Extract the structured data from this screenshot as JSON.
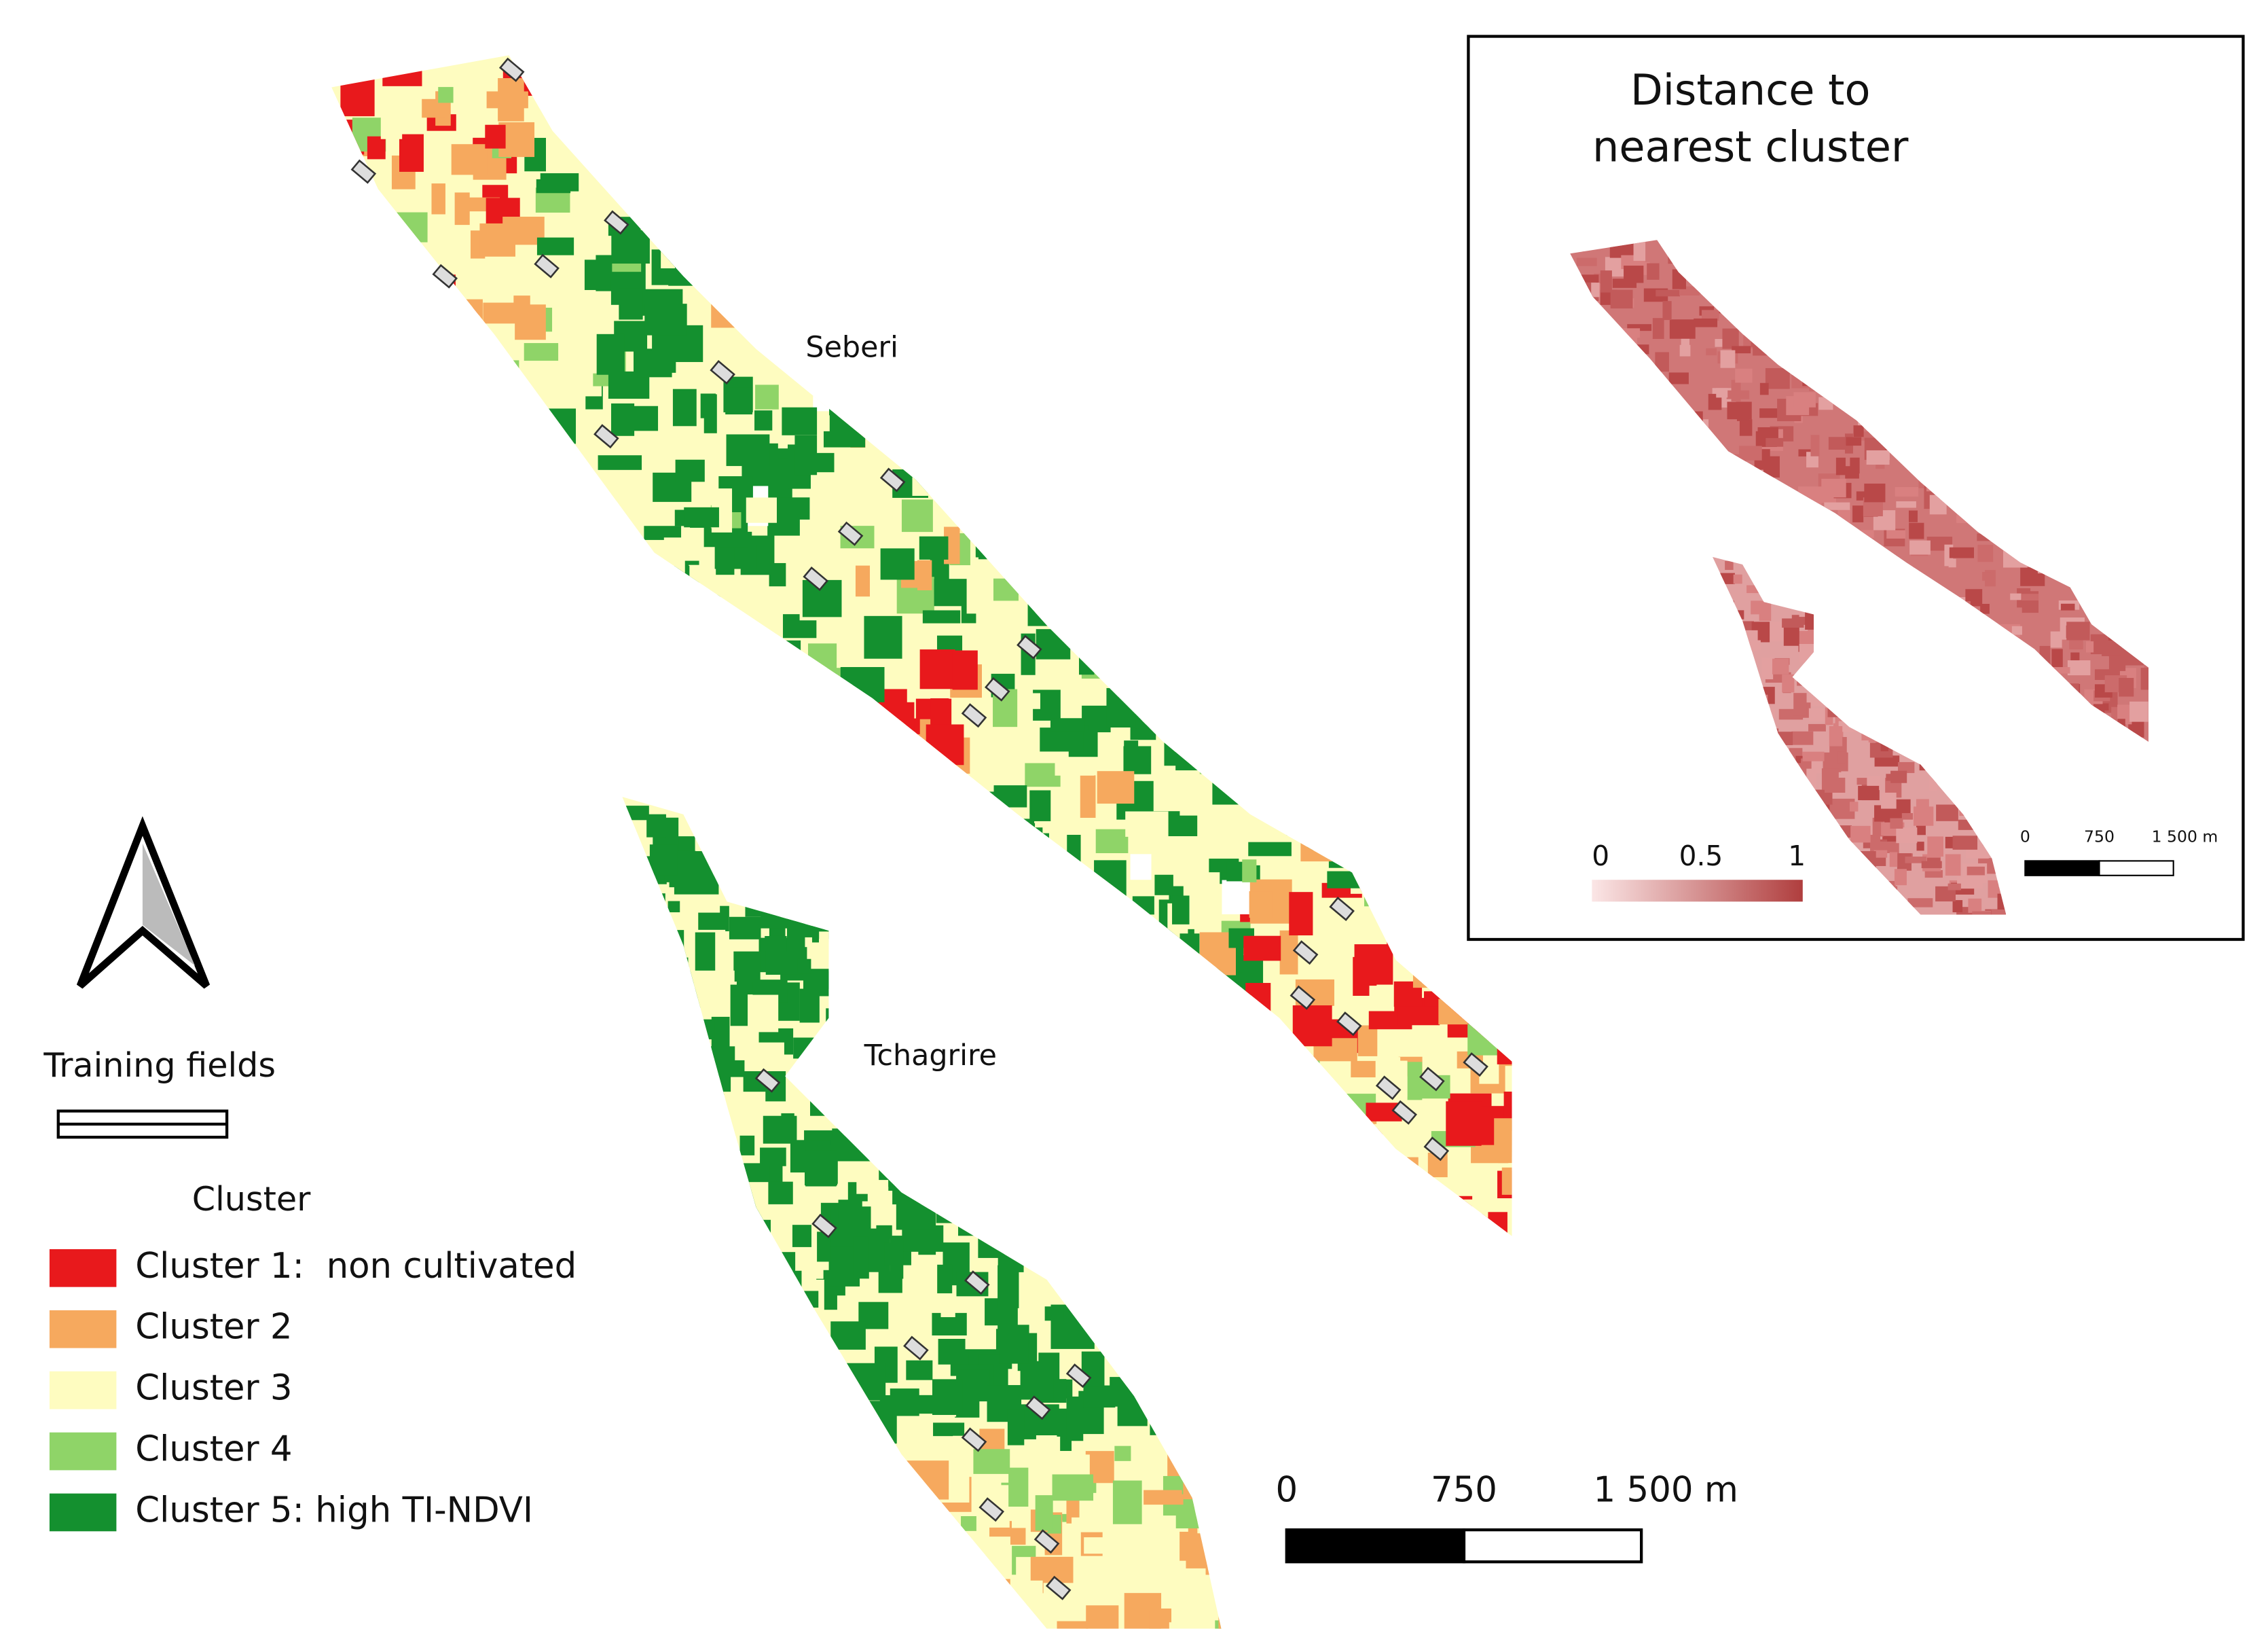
{
  "map": {
    "places": [
      "Seberi",
      "Tchagrire"
    ],
    "legend": {
      "training_fields": "Training fields",
      "title": "Cluster",
      "items": [
        {
          "label": "Cluster 1:  non cultivated",
          "color": "#e8191c"
        },
        {
          "label": "Cluster 2",
          "color": "#f6a95e"
        },
        {
          "label": "Cluster 3",
          "color": "#fefcc0"
        },
        {
          "label": "Cluster 4",
          "color": "#8fd468"
        },
        {
          "label": "Cluster 5: high TI-NDVI",
          "color": "#14902f"
        }
      ]
    },
    "scale_bar": [
      "0",
      "750",
      "1 500 m"
    ],
    "inset": {
      "title": [
        "Distance to",
        "nearest cluster"
      ],
      "colorbar": [
        "0",
        "0.5",
        "1"
      ],
      "scale_bar": [
        "0",
        "750",
        "1 500 m"
      ]
    }
  }
}
